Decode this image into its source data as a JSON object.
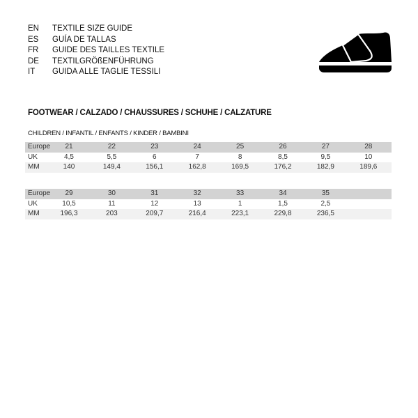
{
  "languages": [
    {
      "code": "EN",
      "title": "TEXTILE SIZE GUIDE"
    },
    {
      "code": "ES",
      "title": "GUÍA DE TALLAS"
    },
    {
      "code": "FR",
      "title": "GUIDE DES TAILLES TEXTILE"
    },
    {
      "code": "DE",
      "title": "TEXTILGRÖßENFÜHRUNG"
    },
    {
      "code": "IT",
      "title": "GUIDA ALLE TAGLIE TESSILI"
    }
  ],
  "icon": "shoe-icon",
  "section_title": "FOOTWEAR / CALZADO / CHAUSSURES / SCHUHE / CALZATURE",
  "subsection_title": "CHILDREN / INFANTIL / ENFANTS / KINDER / BAMBINI",
  "tables": [
    {
      "rows": [
        {
          "label": "Europe",
          "values": [
            "21",
            "22",
            "23",
            "24",
            "25",
            "26",
            "27",
            "28"
          ]
        },
        {
          "label": "UK",
          "values": [
            "4,5",
            "5,5",
            "6",
            "7",
            "8",
            "8,5",
            "9,5",
            "10"
          ]
        },
        {
          "label": "MM",
          "values": [
            "140",
            "149,4",
            "156,1",
            "162,8",
            "169,5",
            "176,2",
            "182,9",
            "189,6"
          ]
        }
      ]
    },
    {
      "rows": [
        {
          "label": "Europe",
          "values": [
            "29",
            "30",
            "31",
            "32",
            "33",
            "34",
            "35"
          ]
        },
        {
          "label": "UK",
          "values": [
            "10,5",
            "11",
            "12",
            "13",
            "1",
            "1,5",
            "2,5"
          ]
        },
        {
          "label": "MM",
          "values": [
            "196,3",
            "203",
            "209,7",
            "216,4",
            "223,1",
            "229,8",
            "236,5"
          ]
        }
      ]
    }
  ]
}
